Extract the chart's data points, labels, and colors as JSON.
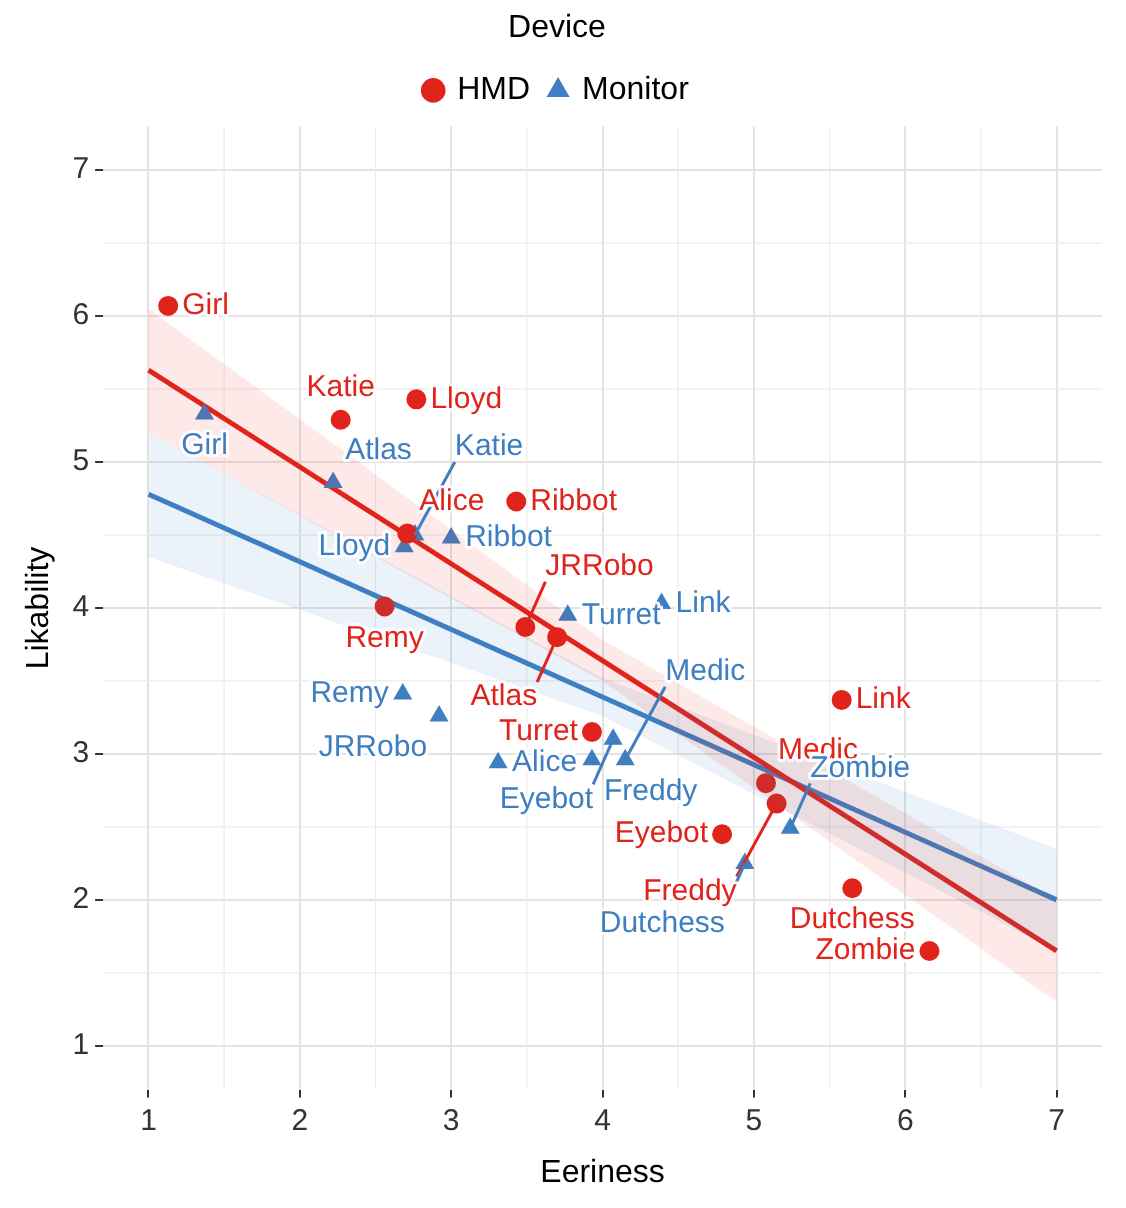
{
  "chart_data": {
    "type": "scatter",
    "xlabel": "Eeriness",
    "ylabel": "Likability",
    "legend_title": "Device",
    "legend": "top",
    "grid": true,
    "xlim": [
      0.7,
      7.3
    ],
    "ylim": [
      0.7,
      7.3
    ],
    "xticks": [
      1,
      2,
      3,
      4,
      5,
      6,
      7
    ],
    "yticks": [
      1,
      2,
      3,
      4,
      5,
      6,
      7
    ],
    "series": [
      {
        "name": "HMD",
        "color": "#e0241b",
        "marker": "circle",
        "x": [
          1.13,
          2.27,
          2.77,
          2.71,
          3.43,
          2.56,
          3.49,
          3.7,
          3.93,
          5.58,
          5.08,
          5.15,
          4.79,
          5.65,
          6.16
        ],
        "values": [
          6.07,
          5.29,
          5.43,
          4.51,
          4.73,
          4.01,
          3.87,
          3.8,
          3.15,
          3.37,
          2.8,
          2.66,
          2.45,
          2.08,
          1.65
        ],
        "value_labels": [
          "Girl",
          "Katie",
          "Lloyd",
          "Alice",
          "Ribbot",
          "Remy",
          "JRRobo",
          "Atlas",
          "Turret",
          "Link",
          "Medic",
          "Freddy",
          "Eyebot",
          "Dutchess",
          "Zombie"
        ]
      },
      {
        "name": "Monitor",
        "color": "#3f7fc1",
        "marker": "triangle",
        "x": [
          1.37,
          2.22,
          2.76,
          2.69,
          3.0,
          2.68,
          2.92,
          3.31,
          3.77,
          4.39,
          4.07,
          3.93,
          4.15,
          5.24,
          4.94
        ],
        "values": [
          5.33,
          4.86,
          4.5,
          4.42,
          4.48,
          3.41,
          3.26,
          2.94,
          3.95,
          4.03,
          3.1,
          2.96,
          2.96,
          2.49,
          2.25
        ],
        "value_labels": [
          "Girl",
          "Atlas",
          "Katie",
          "Lloyd",
          "Ribbot",
          "Remy",
          "JRRobo",
          "Alice",
          "Turret",
          "Link",
          "Eyebot",
          "Freddy",
          "Medic",
          "Zombie",
          "Dutchess"
        ]
      },
      {
        "type": "line",
        "color": "#e0241b",
        "x": [
          1,
          4,
          7
        ],
        "values": [
          5.63,
          3.64,
          1.65
        ],
        "lower": [
          5.2,
          3.5,
          1.3
        ],
        "upper": [
          6.05,
          3.78,
          2.0
        ]
      },
      {
        "type": "line",
        "color": "#3f7fc1",
        "x": [
          1,
          4,
          7
        ],
        "values": [
          4.78,
          3.39,
          2.0
        ],
        "lower": [
          4.35,
          3.26,
          1.65
        ],
        "upper": [
          5.2,
          3.52,
          2.35
        ]
      }
    ]
  }
}
